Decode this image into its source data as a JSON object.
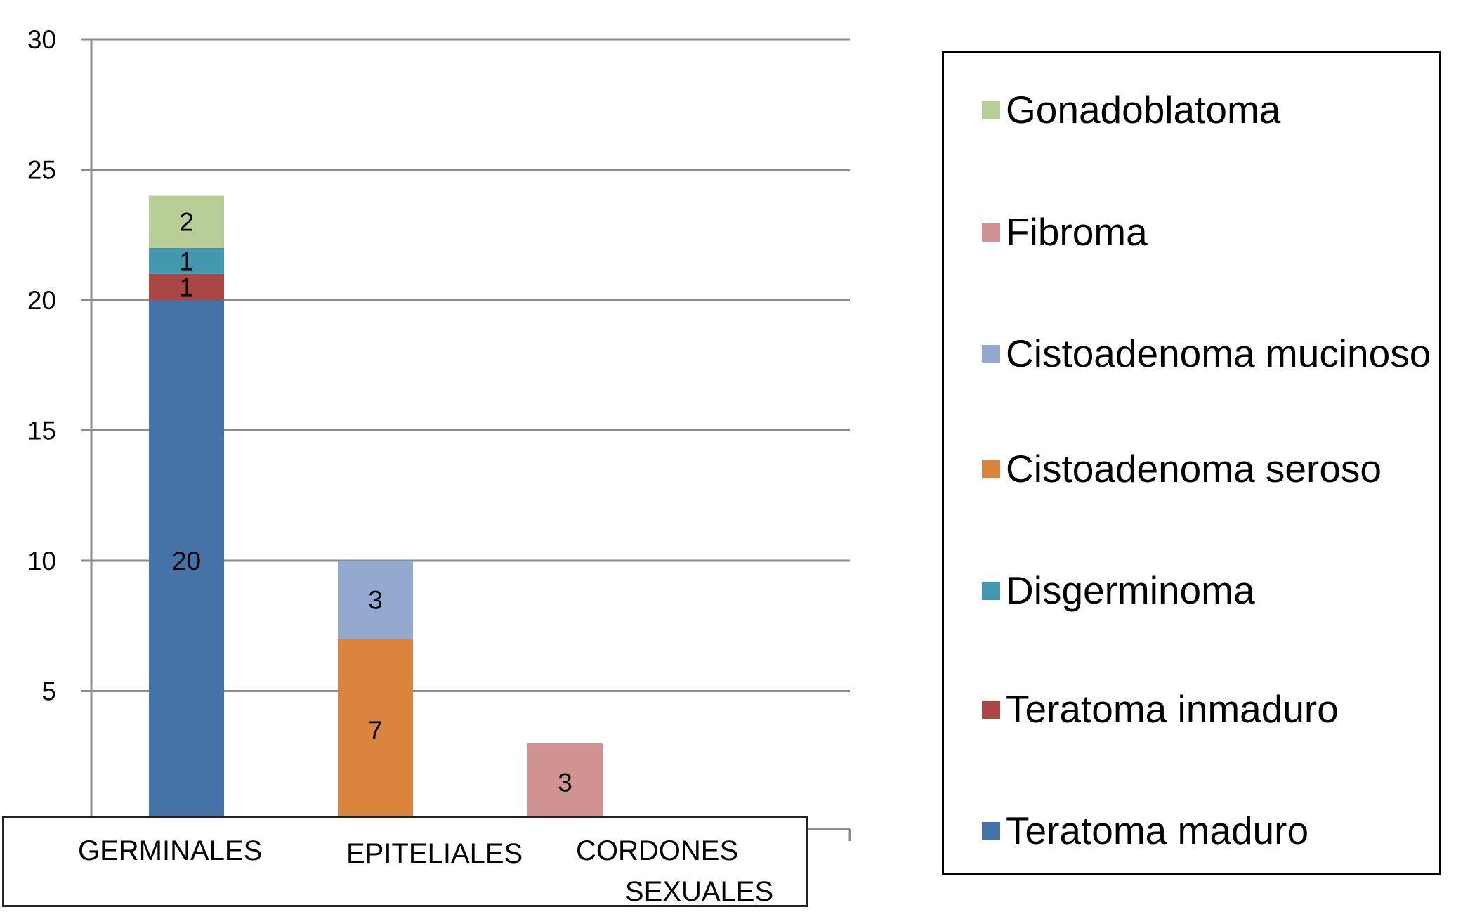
{
  "chart_data": {
    "type": "bar",
    "stacked": true,
    "title": "",
    "xlabel": "",
    "ylabel": "",
    "ylim": [
      0,
      30
    ],
    "yticks": [
      5,
      10,
      15,
      20,
      25,
      30
    ],
    "grid": true,
    "legend_position": "right",
    "categories": [
      "GERMINALES",
      "EPITELIALES",
      "CORDONES SEXUALES"
    ],
    "category_lines": [
      [
        "GERMINALES"
      ],
      [
        "EPITELIALES"
      ],
      [
        "CORDONES",
        "SEXUALES"
      ]
    ],
    "series": [
      {
        "name": "Teratoma maduro",
        "color": "#4572A7",
        "values": [
          20,
          0,
          0
        ]
      },
      {
        "name": "Teratoma inmaduro",
        "color": "#AA4643",
        "values": [
          1,
          0,
          0
        ]
      },
      {
        "name": "Disgerminoma",
        "color": "#4198AF",
        "values": [
          1,
          0,
          0
        ]
      },
      {
        "name": "Cistoadenoma seroso",
        "color": "#DB843D",
        "values": [
          0,
          7,
          0
        ]
      },
      {
        "name": "Cistoadenoma mucinoso",
        "color": "#93A9CF",
        "values": [
          0,
          3,
          0
        ]
      },
      {
        "name": "Fibroma",
        "color": "#D19392",
        "values": [
          0,
          0,
          3
        ]
      },
      {
        "name": "Gonadoblatoma",
        "color": "#B9CD96",
        "values": [
          2,
          0,
          0
        ]
      }
    ],
    "legend_order": [
      "Gonadoblatoma",
      "Fibroma",
      "Cistoadenoma mucinoso",
      "Cistoadenoma seroso",
      "Disgerminoma",
      "Teratoma inmaduro",
      "Teratoma maduro"
    ]
  },
  "colors": {
    "gridline": "#8c8c8c",
    "axis": "#8c8c8c"
  }
}
